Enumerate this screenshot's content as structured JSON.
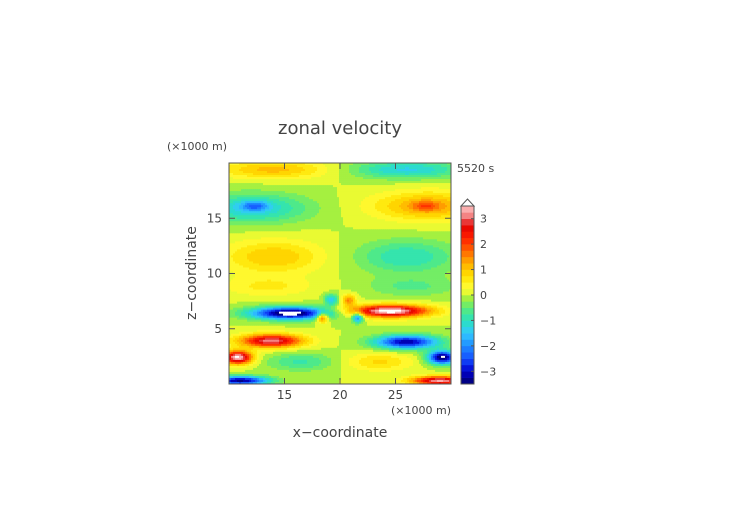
{
  "chart_data": {
    "type": "heatmap",
    "title": "zonal velocity",
    "xlabel": "x−coordinate",
    "ylabel": "z−coordinate",
    "x_unit_label": "(×1000 m)",
    "y_unit_label": "(×1000 m)",
    "time_label": "5520 s",
    "xlim": [
      10,
      30
    ],
    "ylim": [
      0,
      20
    ],
    "x_ticks": [
      15,
      20,
      25
    ],
    "y_ticks": [
      5,
      10,
      15
    ],
    "colorbar": {
      "min": -3.5,
      "max": 3.5,
      "step": 0.25,
      "tick_values": [
        3,
        2,
        1,
        0,
        -1,
        -2,
        -3
      ],
      "tick_labels": [
        "3",
        "2",
        "1",
        "0",
        "−1",
        "−2",
        "−3"
      ],
      "extend": "max"
    },
    "features": [
      {
        "x": 24.5,
        "z": 6.6,
        "sx": 3.5,
        "sz": 0.55,
        "amp": 3.8,
        "desc": "strong positive jet right"
      },
      {
        "x": 20.8,
        "z": 7.6,
        "sx": 0.6,
        "sz": 0.5,
        "amp": 1.5,
        "desc": "positive core near center right"
      },
      {
        "x": 15.5,
        "z": 6.4,
        "sx": 3.5,
        "sz": 0.55,
        "amp": -3.8,
        "desc": "strong negative jet left"
      },
      {
        "x": 19.2,
        "z": 7.6,
        "sx": 0.6,
        "sz": 0.5,
        "amp": -1.5,
        "desc": "negative core near center left"
      },
      {
        "x": 13.8,
        "z": 3.9,
        "sx": 2.8,
        "sz": 0.6,
        "amp": 3.2,
        "desc": "positive band lower left"
      },
      {
        "x": 10.8,
        "z": 2.4,
        "sx": 1.3,
        "sz": 0.6,
        "amp": 3.6,
        "desc": "positive blob far left"
      },
      {
        "x": 18.4,
        "z": 6.0,
        "sx": 0.5,
        "sz": 0.45,
        "amp": 2.2,
        "desc": "positive blob center left"
      },
      {
        "x": 26.0,
        "z": 3.8,
        "sx": 2.8,
        "sz": 0.6,
        "amp": -3.2,
        "desc": "negative band lower right"
      },
      {
        "x": 29.2,
        "z": 2.4,
        "sx": 1.3,
        "sz": 0.6,
        "amp": -3.6,
        "desc": "negative blob far right"
      },
      {
        "x": 21.6,
        "z": 6.0,
        "sx": 0.5,
        "sz": 0.45,
        "amp": -2.2,
        "desc": "negative blob center right"
      },
      {
        "x": 11.0,
        "z": 0.3,
        "sx": 2.5,
        "sz": 0.4,
        "amp": -3.3,
        "desc": "negative bottom left"
      },
      {
        "x": 29.0,
        "z": 0.3,
        "sx": 2.5,
        "sz": 0.4,
        "amp": 3.3,
        "desc": "positive bottom right"
      },
      {
        "x": 16.5,
        "z": 2.0,
        "sx": 3.0,
        "sz": 0.8,
        "amp": -0.8,
        "desc": "weak negative lower left"
      },
      {
        "x": 23.5,
        "z": 2.0,
        "sx": 3.0,
        "sz": 0.8,
        "amp": 0.8,
        "desc": "weak positive lower right"
      },
      {
        "x": 12.0,
        "z": 15.9,
        "sx": 5.0,
        "sz": 1.3,
        "amp": -1.3,
        "desc": "negative upper left band"
      },
      {
        "x": 12.3,
        "z": 16.1,
        "sx": 1.2,
        "sz": 0.45,
        "amp": -1.2,
        "desc": "negative upper left core"
      },
      {
        "x": 28.0,
        "z": 16.1,
        "sx": 5.0,
        "sz": 1.3,
        "amp": 1.3,
        "desc": "positive upper right band"
      },
      {
        "x": 27.7,
        "z": 16.1,
        "sx": 1.2,
        "sz": 0.45,
        "amp": 0.8,
        "desc": "positive upper right core"
      },
      {
        "x": 14.0,
        "z": 11.5,
        "sx": 4.5,
        "sz": 1.5,
        "amp": 1.0,
        "desc": "positive mid left"
      },
      {
        "x": 26.0,
        "z": 11.5,
        "sx": 4.5,
        "sz": 1.5,
        "amp": -1.0,
        "desc": "negative mid right"
      },
      {
        "x": 14.0,
        "z": 19.4,
        "sx": 5.0,
        "sz": 0.8,
        "amp": 1.1,
        "desc": "positive top left"
      },
      {
        "x": 26.0,
        "z": 19.4,
        "sx": 5.0,
        "sz": 0.8,
        "amp": -1.3,
        "desc": "negative top right"
      },
      {
        "x": 13.5,
        "z": 8.8,
        "sx": 4.0,
        "sz": 0.9,
        "amp": 0.55,
        "desc": "weak positive above jet left"
      },
      {
        "x": 26.5,
        "z": 8.8,
        "sx": 4.0,
        "sz": 0.9,
        "amp": -0.55,
        "desc": "weak negative above jet right"
      }
    ]
  }
}
